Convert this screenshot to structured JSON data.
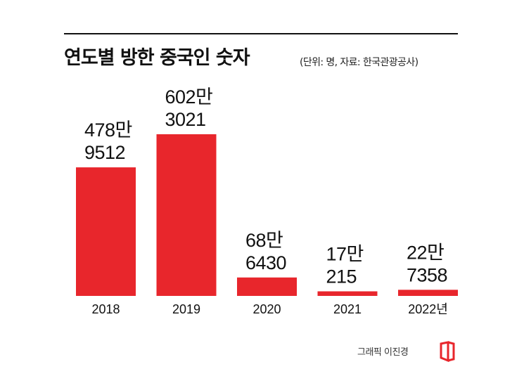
{
  "title": "연도별 방한 중국인 숫자",
  "subtitle": "(단위: 명, 자료: 한국관광공사)",
  "credit": "그래픽 이진경",
  "colors": {
    "bar": "#e8262c",
    "text": "#111111",
    "rule": "#111111"
  },
  "chart_data": {
    "type": "bar",
    "categories": [
      "2018",
      "2019",
      "2020",
      "2021",
      "2022년"
    ],
    "values": [
      4789512,
      6023021,
      686430,
      170215,
      227358
    ],
    "value_labels": [
      [
        "478만",
        "9512"
      ],
      [
        "602만",
        "3021"
      ],
      [
        "68만",
        "6430"
      ],
      [
        "17만",
        "215"
      ],
      [
        "22만",
        "7358"
      ]
    ],
    "title": "연도별 방한 중국인 숫자",
    "ylim": [
      0,
      6023021
    ],
    "grid": false,
    "legend": "none"
  }
}
